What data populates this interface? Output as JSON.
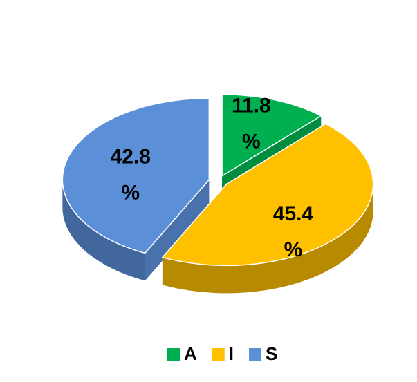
{
  "chart_data": {
    "type": "pie3d",
    "categories": [
      "A",
      "I",
      "S"
    ],
    "values": [
      11.8,
      45.4,
      42.8
    ],
    "value_labels": [
      "11.8%",
      "45.4%",
      "42.8%"
    ],
    "colors": [
      "#00b050",
      "#ffc000",
      "#5b8fd8"
    ],
    "legend": "bottom"
  }
}
